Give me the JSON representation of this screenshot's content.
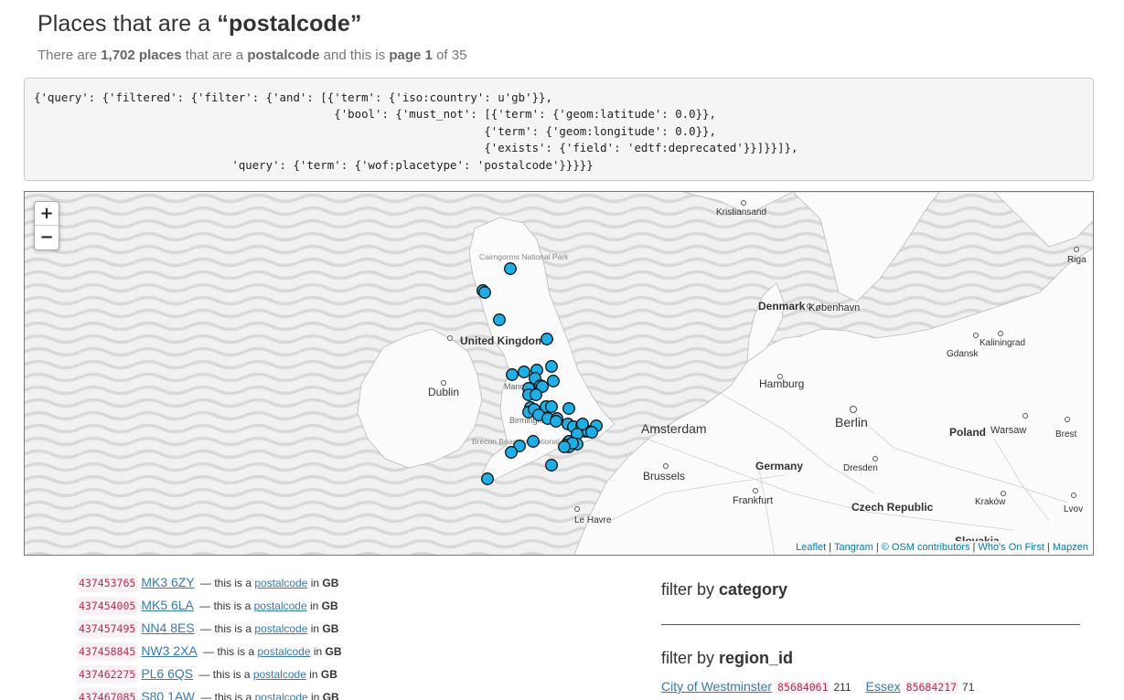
{
  "page": {
    "title_prefix": "Places that are a ",
    "title_placetype": "“postalcode”",
    "subtitle": {
      "pre": "There are ",
      "count": "1,702 places",
      "mid": " that are a ",
      "placetype": "postalcode",
      "mid2": " and this is ",
      "page": "page 1",
      "post": " of 35"
    }
  },
  "query": "{'query': {'filtered': {'filter': {'and': [{'term': {'iso:country': u'gb'}},\n                                            {'bool': {'must_not': [{'term': {'geom:latitude': 0.0}},\n                                                                  {'term': {'geom:longitude': 0.0}},\n                                                                  {'exists': {'field': 'edtf:deprecated'}}]}}]},\n                             'query': {'term': {'wof:placetype': 'postalcode'}}}}}",
  "map": {
    "zoom_in": "+",
    "zoom_out": "−",
    "labels": {
      "kristiansand": "Kristiansand",
      "riga": "Riga",
      "cairngorms": "Cairngorms National Park",
      "denmark": "Denmark",
      "kobenhavn": "København",
      "uk": "United Kingdom",
      "gdansk": "Gdansk",
      "kaliningrad": "Kaliningrad",
      "dublin": "Dublin",
      "hamburg": "Hamburg",
      "manchester": "Manchester",
      "birmingham": "Birmingham",
      "amsterdam": "Amsterdam",
      "berlin": "Berlin",
      "poland": "Poland",
      "warsaw": "Warsaw",
      "brest": "Brest",
      "brecon": "Brecon Beacons National Park",
      "brussels": "Brussels",
      "germany": "Germany",
      "dresden": "Dresden",
      "frankfurt": "Frankfurt",
      "czech": "Czech Republic",
      "krakow": "Kraków",
      "lviv": "Lvov",
      "lehavre": "Le Havre",
      "slovakia": "Slovakia"
    },
    "attribution": [
      "Leaflet",
      "Tangram",
      "© OSM contributors",
      "Who's On First",
      "Mapzen"
    ],
    "marker_color": "#1ab0e8"
  },
  "results": [
    {
      "id": "437453765",
      "name": "MK3 6ZY",
      "desc_pre": " — this is a ",
      "placetype": "postalcode",
      "desc_in": " in ",
      "country": "GB"
    },
    {
      "id": "437454005",
      "name": "MK5 6LA",
      "desc_pre": " — this is a ",
      "placetype": "postalcode",
      "desc_in": " in ",
      "country": "GB"
    },
    {
      "id": "437457495",
      "name": "NN4 8ES",
      "desc_pre": " — this is a ",
      "placetype": "postalcode",
      "desc_in": " in ",
      "country": "GB"
    },
    {
      "id": "437458845",
      "name": "NW3 2XA",
      "desc_pre": " — this is a ",
      "placetype": "postalcode",
      "desc_in": " in ",
      "country": "GB"
    },
    {
      "id": "437462275",
      "name": "PL6 6QS",
      "desc_pre": " — this is a ",
      "placetype": "postalcode",
      "desc_in": " in ",
      "country": "GB"
    },
    {
      "id": "437467085",
      "name": "S80 1AW",
      "desc_pre": " — this is a ",
      "placetype": "postalcode",
      "desc_in": " in ",
      "country": "GB"
    }
  ],
  "filters": {
    "category_label": "filter by ",
    "category_key": "category",
    "region_label": "filter by ",
    "region_key": "region_id",
    "regions": [
      {
        "name": "City of Westminster",
        "id": "85684061",
        "count": "211"
      },
      {
        "name": "Essex",
        "id": "85684217",
        "count": "71"
      }
    ]
  }
}
